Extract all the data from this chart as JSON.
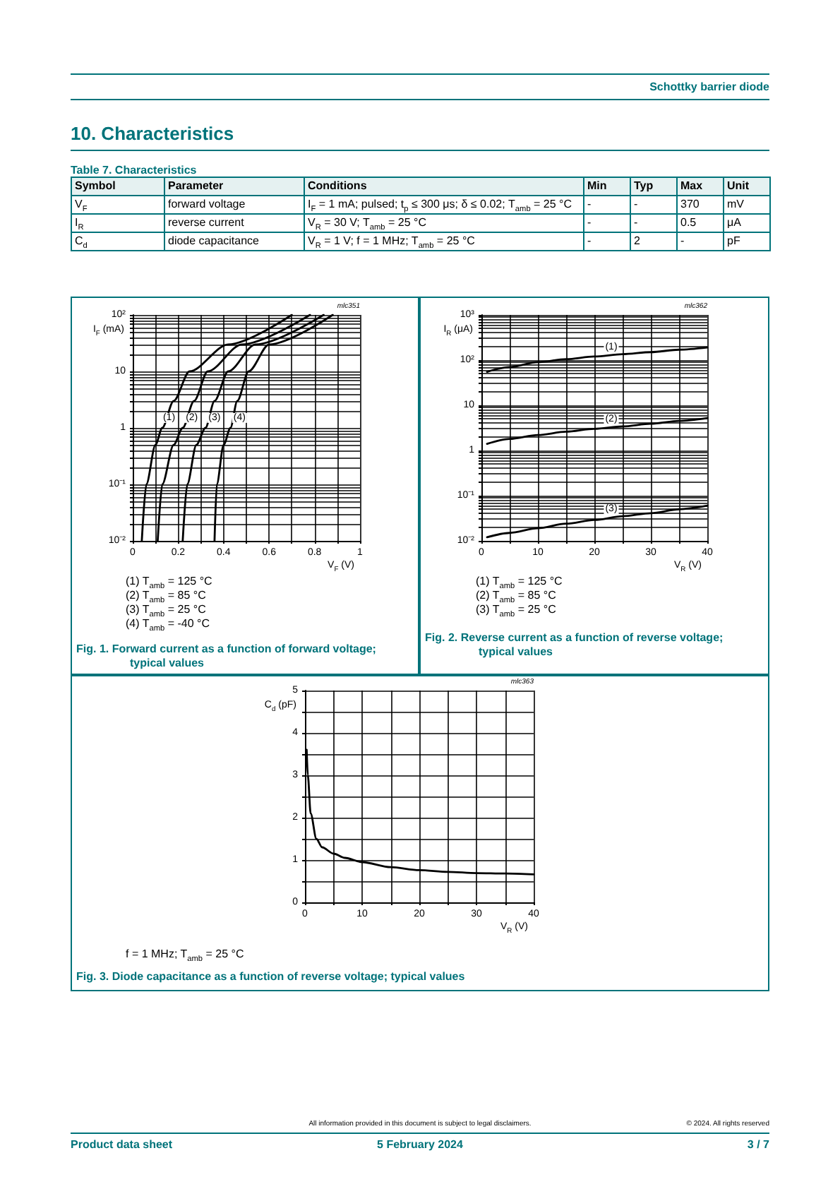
{
  "chart_data": [
    {
      "type": "other",
      "title": "Schottky barrier diode",
      "annotations": [
        "All information provided in this document is subject to legal disclaimers.",
        "© 2024. All rights reserved",
        "Product data sheet",
        "5 February 2024",
        "3 / 7"
      ]
    },
    {
      "type": "other",
      "title": "10. Characteristics",
      "subtitle": "Table 7. Characteristics",
      "categories": [
        "Symbol",
        "Parameter",
        "Conditions",
        "Min",
        "Typ",
        "Max",
        "Unit"
      ],
      "annotations": [
        "V$_{F}$",
        "forward voltage",
        "I$_{F}$ = 1 mA; pulsed; t$_{p}$ ≤  300 μs; δ ≤ 0.02; T$_{amb}$ = 25 °C",
        "-",
        "-",
        "370",
        "mV",
        "I$_{R}$",
        "reverse current",
        "V$_{R}$ = 30 V; T$_{amb}$ = 25 °C",
        "-",
        "-",
        "0.5",
        "μA",
        "C$_{d}$",
        "diode capacitance",
        "V$_{R}$ = 1 V; f = 1 MHz; T$_{amb}$ = 25 °C",
        "-",
        "2",
        "-",
        "pF"
      ]
    },
    {
      "type": "line",
      "title": "Fig. 1. Forward current as a function of forward voltage; typical values",
      "xlabel": "V$_{F}$ (V)",
      "ylabel": "I$_{F}$ (mA)",
      "log": "y",
      "grid": true,
      "marker": "none",
      "line_style": "solid",
      "xlim": [
        0,
        1
      ],
      "ylim": [
        0.01,
        100
      ],
      "xticks": [
        0,
        {
          "value": 0.1,
          "label": null
        },
        0.2,
        {
          "value": 0.3,
          "label": null
        },
        0.4,
        {
          "value": 0.5,
          "label": null
        },
        0.6,
        {
          "value": 0.7,
          "label": null
        },
        0.8,
        {
          "value": 0.9,
          "label": null
        },
        1
      ],
      "yticks": [
        {
          "value": 0.01,
          "label": "10⁻²"
        },
        {
          "value": 0.02,
          "label": null
        },
        {
          "value": 0.03,
          "label": null
        },
        {
          "value": 0.04,
          "label": null
        },
        {
          "value": 0.05,
          "label": null
        },
        {
          "value": 0.06,
          "label": null
        },
        {
          "value": 0.07,
          "label": null
        },
        {
          "value": 0.08,
          "label": null
        },
        {
          "value": 0.09,
          "label": null
        },
        {
          "value": 0.1,
          "label": "10⁻¹"
        },
        {
          "value": 0.2,
          "label": null
        },
        {
          "value": 0.3,
          "label": null
        },
        {
          "value": 0.4,
          "label": null
        },
        {
          "value": 0.5,
          "label": null
        },
        {
          "value": 0.6,
          "label": null
        },
        {
          "value": 0.7,
          "label": null
        },
        {
          "value": 0.8,
          "label": null
        },
        {
          "value": 0.9,
          "label": null
        },
        1,
        {
          "value": 2,
          "label": null
        },
        {
          "value": 3,
          "label": null
        },
        {
          "value": 4,
          "label": null
        },
        {
          "value": 5,
          "label": null
        },
        {
          "value": 6,
          "label": null
        },
        {
          "value": 7,
          "label": null
        },
        {
          "value": 8,
          "label": null
        },
        {
          "value": 9,
          "label": null
        },
        10,
        {
          "value": 20,
          "label": null
        },
        {
          "value": 30,
          "label": null
        },
        {
          "value": 40,
          "label": null
        },
        {
          "value": 50,
          "label": null
        },
        {
          "value": 60,
          "label": null
        },
        {
          "value": 70,
          "label": null
        },
        {
          "value": 80,
          "label": null
        },
        {
          "value": 90,
          "label": null
        },
        {
          "value": 100,
          "label": "10²"
        }
      ],
      "series": [
        {
          "color": "#000000",
          "x": [
            0.04,
            0.06,
            0.1,
            0.13,
            0.18,
            0.25,
            0.42,
            0.7
          ],
          "values": [
            0.01,
            0.1,
            0.5,
            1,
            3,
            10,
            30,
            100
          ]
        },
        {
          "color": "#000000",
          "x": [
            0.11,
            0.13,
            0.18,
            0.22,
            0.27,
            0.33,
            0.48,
            0.78
          ],
          "values": [
            0.01,
            0.1,
            0.5,
            1,
            3,
            10,
            30,
            100
          ]
        },
        {
          "color": "#000000",
          "x": [
            0.22,
            0.24,
            0.28,
            0.32,
            0.36,
            0.42,
            0.54,
            0.84
          ],
          "values": [
            0.01,
            0.1,
            0.5,
            1,
            3,
            10,
            30,
            100
          ]
        },
        {
          "color": "#000000",
          "x": [
            0.36,
            0.37,
            0.4,
            0.43,
            0.46,
            0.51,
            0.6,
            0.88
          ],
          "values": [
            0.01,
            0.1,
            0.5,
            1,
            3,
            10,
            30,
            100
          ]
        }
      ],
      "annotations": [
        "mlc351",
        {
          "text": "(1)",
          "x": 0.16,
          "y": 1.5
        },
        {
          "text": "(2)",
          "x": 0.26,
          "y": 1.5
        },
        {
          "text": "(3)",
          "x": 0.36,
          "y": 1.5
        },
        {
          "text": "(4)",
          "x": 0.47,
          "y": 1.5
        },
        "(1) T$_{amb}$ = 125 °C",
        "(2) T$_{amb}$ = 85 °C",
        "(3) T$_{amb}$ = 25 °C",
        "(4) T$_{amb}$ = -40 °C"
      ]
    },
    {
      "type": "line",
      "title": "Fig. 2. Reverse current as a function of reverse voltage; typical values",
      "xlabel": "V$_{R}$ (V)",
      "ylabel": "I$_{R}$ (μA)",
      "log": "y",
      "grid": true,
      "marker": "none",
      "line_style": "solid",
      "xlim": [
        0,
        40
      ],
      "ylim": [
        0.01,
        1000
      ],
      "xticks": [
        0,
        {
          "value": 5,
          "label": null
        },
        10,
        {
          "value": 15,
          "label": null
        },
        20,
        {
          "value": 25,
          "label": null
        },
        30,
        {
          "value": 35,
          "label": null
        },
        40
      ],
      "yticks": [
        {
          "value": 0.01,
          "label": "10⁻²"
        },
        {
          "value": 0.02,
          "label": null
        },
        {
          "value": 0.03,
          "label": null
        },
        {
          "value": 0.04,
          "label": null
        },
        {
          "value": 0.05,
          "label": null
        },
        {
          "value": 0.06,
          "label": null
        },
        {
          "value": 0.07,
          "label": null
        },
        {
          "value": 0.08,
          "label": null
        },
        {
          "value": 0.09,
          "label": null
        },
        {
          "value": 0.1,
          "label": "10⁻¹"
        },
        {
          "value": 0.2,
          "label": null
        },
        {
          "value": 0.3,
          "label": null
        },
        {
          "value": 0.4,
          "label": null
        },
        {
          "value": 0.5,
          "label": null
        },
        {
          "value": 0.6,
          "label": null
        },
        {
          "value": 0.7,
          "label": null
        },
        {
          "value": 0.8,
          "label": null
        },
        {
          "value": 0.9,
          "label": null
        },
        1,
        {
          "value": 2,
          "label": null
        },
        {
          "value": 3,
          "label": null
        },
        {
          "value": 4,
          "label": null
        },
        {
          "value": 5,
          "label": null
        },
        {
          "value": 6,
          "label": null
        },
        {
          "value": 7,
          "label": null
        },
        {
          "value": 8,
          "label": null
        },
        {
          "value": 9,
          "label": null
        },
        10,
        {
          "value": 20,
          "label": null
        },
        {
          "value": 30,
          "label": null
        },
        {
          "value": 40,
          "label": null
        },
        {
          "value": 50,
          "label": null
        },
        {
          "value": 60,
          "label": null
        },
        {
          "value": 70,
          "label": null
        },
        {
          "value": 80,
          "label": null
        },
        {
          "value": 90,
          "label": null
        },
        {
          "value": 100,
          "label": "10²"
        },
        {
          "value": 200,
          "label": null
        },
        {
          "value": 300,
          "label": null
        },
        {
          "value": 400,
          "label": null
        },
        {
          "value": 500,
          "label": null
        },
        {
          "value": 600,
          "label": null
        },
        {
          "value": 700,
          "label": null
        },
        {
          "value": 800,
          "label": null
        },
        {
          "value": 900,
          "label": null
        },
        {
          "value": 1000,
          "label": "10³"
        }
      ],
      "x": [
        1,
        5,
        10,
        15,
        20,
        25,
        30,
        35,
        40
      ],
      "series": [
        {
          "color": "#000000",
          "values": [
            55,
            70,
            90,
            105,
            120,
            135,
            150,
            170,
            190
          ]
        },
        {
          "color": "#000000",
          "values": [
            1.4,
            1.8,
            2.2,
            2.6,
            3.0,
            3.4,
            3.9,
            4.5,
            5.2
          ]
        },
        {
          "color": "#000000",
          "values": [
            0.012,
            0.015,
            0.019,
            0.024,
            0.029,
            0.035,
            0.041,
            0.05,
            0.06
          ]
        }
      ],
      "annotations": [
        "mlc362",
        {
          "text": "(1)",
          "x": 23,
          "y": 190
        },
        {
          "text": "(2)",
          "x": 23,
          "y": 4.8
        },
        {
          "text": "(3)",
          "x": 23,
          "y": 0.05
        },
        "(1) T$_{amb}$ = 125 °C",
        "(2) T$_{amb}$ = 85 °C",
        "(3) T$_{amb}$ = 25 °C"
      ]
    },
    {
      "type": "line",
      "title": "Fig. 3. Diode capacitance as a function of reverse voltage; typical values",
      "xlabel": "V$_{R}$ (V)",
      "ylabel": "C$_{d}$ (pF)",
      "grid": true,
      "marker": "none",
      "line_style": "solid",
      "xlim": [
        0,
        40
      ],
      "ylim": [
        0,
        5
      ],
      "xticks": [
        0,
        {
          "value": 5,
          "label": null
        },
        10,
        {
          "value": 15,
          "label": null
        },
        20,
        {
          "value": 25,
          "label": null
        },
        30,
        {
          "value": 35,
          "label": null
        },
        40
      ],
      "yticks": [
        0,
        {
          "value": 0.5,
          "label": null
        },
        1,
        {
          "value": 1.5,
          "label": null
        },
        2,
        {
          "value": 2.5,
          "label": null
        },
        3,
        {
          "value": 3.5,
          "label": null
        },
        4,
        {
          "value": 4.5,
          "label": null
        },
        5
      ],
      "x": [
        0.3,
        0.5,
        1,
        2,
        3,
        5,
        7,
        10,
        15,
        20,
        25,
        30,
        35,
        40
      ],
      "series": [
        {
          "color": "#000000",
          "values": [
            3.6,
            3.0,
            2.1,
            1.5,
            1.3,
            1.15,
            1.05,
            0.95,
            0.83,
            0.76,
            0.72,
            0.69,
            0.68,
            0.66
          ]
        }
      ],
      "annotations": [
        "mlc363",
        "f = 1 MHz; T$_{amb}$ = 25 °C"
      ]
    }
  ]
}
